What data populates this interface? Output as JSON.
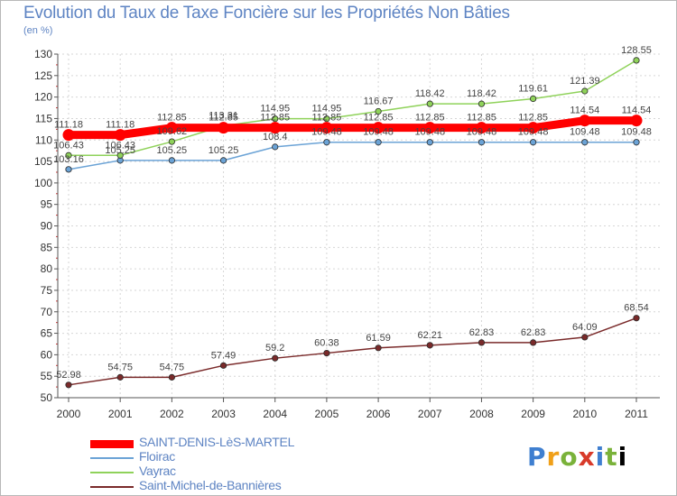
{
  "page": {
    "title": "Evolution du Taux de Taxe Foncière sur les Propriétés Non Bâties",
    "unit_label": "(en %)",
    "logo_text": "Proxiti"
  },
  "chart_data": {
    "type": "line",
    "title": "Evolution du Taux de Taxe Foncière sur les Propriétés Non Bâties",
    "ylabel": "(en %)",
    "xlabel": "",
    "categories": [
      "2000",
      "2001",
      "2002",
      "2003",
      "2004",
      "2005",
      "2006",
      "2007",
      "2008",
      "2009",
      "2010",
      "2011"
    ],
    "ylim": [
      50,
      130
    ],
    "yticks": [
      50,
      55,
      60,
      65,
      70,
      75,
      80,
      85,
      90,
      95,
      100,
      105,
      110,
      115,
      120,
      125,
      130
    ],
    "grid": true,
    "series": [
      {
        "name": "SAINT-DENIS-LèS-MARTEL",
        "color": "#ff0000",
        "values": [
          111.18,
          111.18,
          112.85,
          112.85,
          112.85,
          112.85,
          112.85,
          112.85,
          112.85,
          112.85,
          114.54,
          114.54
        ],
        "labels": [
          "111.18",
          "111.18",
          "112.85",
          "112.85",
          "112.85",
          "112.85",
          "112.85",
          "112.85",
          "112.85",
          "112.85",
          "114.54",
          "114.54"
        ]
      },
      {
        "name": "Floirac",
        "color": "#6ba3d6",
        "values": [
          103.16,
          105.25,
          105.25,
          105.25,
          108.4,
          109.48,
          109.48,
          109.48,
          109.48,
          109.48,
          109.48,
          109.48
        ],
        "labels": [
          "103.16",
          "105.25",
          "105.25",
          "105.25",
          "108.4",
          "109.48",
          "109.48",
          "109.48",
          "109.48",
          "109.48",
          "109.48",
          "109.48"
        ]
      },
      {
        "name": "Vayrac",
        "color": "#8fd25a",
        "values": [
          106.43,
          106.43,
          109.62,
          113.31,
          114.95,
          114.95,
          116.67,
          118.42,
          118.42,
          119.61,
          121.39,
          128.55
        ],
        "labels": [
          "106.43",
          "106.43",
          "109.62",
          "113.31",
          "114.95",
          "114.95",
          "116.67",
          "118.42",
          "118.42",
          "119.61",
          "121.39",
          "128.55"
        ]
      },
      {
        "name": "Saint-Michel-de-Bannières",
        "color": "#7a2a2a",
        "values": [
          52.98,
          54.75,
          54.75,
          57.49,
          59.2,
          60.38,
          61.59,
          62.21,
          62.83,
          62.83,
          64.09,
          68.54
        ],
        "labels": [
          "52.98",
          "54.75",
          "54.75",
          "57.49",
          "59.2",
          "60.38",
          "61.59",
          "62.21",
          "62.83",
          "62.83",
          "64.09",
          "68.54"
        ]
      }
    ]
  }
}
